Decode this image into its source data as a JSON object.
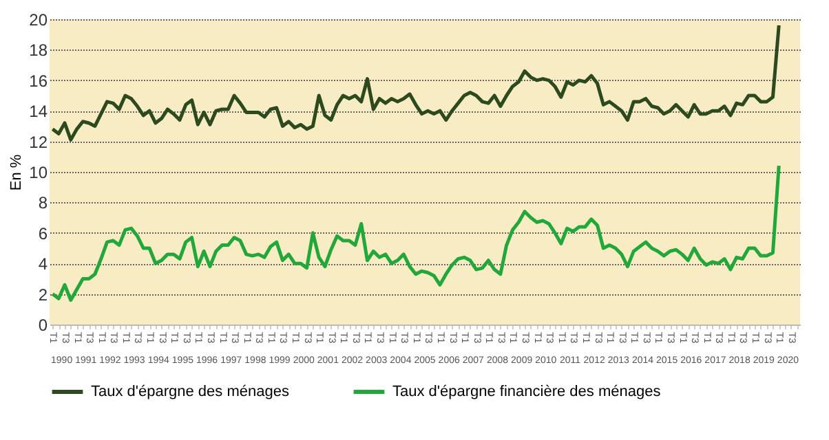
{
  "chart_data": {
    "type": "line",
    "categories": [
      "T1",
      null,
      "T3",
      null,
      "T1",
      null,
      "T3",
      null,
      "T1",
      null,
      "T3",
      null,
      "T1",
      null,
      "T3",
      null,
      "T1",
      null,
      "T3",
      null,
      "T1",
      null,
      "T3",
      null,
      "T1",
      null,
      "T3",
      null,
      "T1",
      null,
      "T3",
      null,
      "T1",
      null,
      "T3",
      null,
      "T1",
      null,
      "T3",
      null,
      "T1",
      null,
      "T3",
      null,
      "T1",
      null,
      "T3",
      null,
      "T1",
      null,
      "T3",
      null,
      "T1",
      null,
      "T3",
      null,
      "T1",
      null,
      "T3",
      null,
      "T1",
      null,
      "T3",
      null,
      "T1",
      null,
      "T3",
      null,
      "T1",
      null,
      "T3",
      null,
      "T1",
      null,
      "T3",
      null,
      "T1",
      null,
      "T3",
      null,
      "T1",
      null,
      "T3",
      null,
      "T1",
      null,
      "T3",
      null,
      "T1",
      null,
      "T3",
      null,
      "T1",
      null,
      "T3",
      null,
      "T1",
      null,
      "T3",
      null,
      "T1",
      null,
      "T3",
      null,
      "T1",
      null,
      "T3",
      null,
      "T1",
      null,
      "T3",
      null,
      "T1",
      null,
      "T3",
      null,
      "T1",
      null,
      "T3",
      null,
      "T1",
      null,
      "T3",
      null
    ],
    "annotations": [
      "1990",
      "1991",
      "1992",
      "1993",
      "1994",
      "1995",
      "1996",
      "1997",
      "1998",
      "1999",
      "2000",
      "2001",
      "2002",
      "2003",
      "2004",
      "2005",
      "2006",
      "2007",
      "2008",
      "2009",
      "2010",
      "2011",
      "2012",
      "2013",
      "2014",
      "2015",
      "2016",
      "2017",
      "2018",
      "2019",
      "2020"
    ],
    "ylabel": "En %",
    "ylim": [
      0,
      20
    ],
    "yticks": [
      0,
      2,
      4,
      6,
      8,
      10,
      12,
      14,
      16,
      18,
      20
    ],
    "grid": "y",
    "legend": "bottom",
    "marker": "none",
    "line_style": "solid",
    "series": [
      {
        "name": "Taux d'épargne des ménages",
        "color": "#2d4a1e",
        "values": [
          12.8,
          12.5,
          13.2,
          12.1,
          12.8,
          13.3,
          13.2,
          13.0,
          13.8,
          14.6,
          14.5,
          14.1,
          15.0,
          14.8,
          14.3,
          13.7,
          14.0,
          13.2,
          13.5,
          14.1,
          13.8,
          13.4,
          14.4,
          14.7,
          13.1,
          13.9,
          13.1,
          14.0,
          14.1,
          14.1,
          15.0,
          14.5,
          13.9,
          13.9,
          13.9,
          13.6,
          14.1,
          14.2,
          13.0,
          13.3,
          12.9,
          13.1,
          12.8,
          13.0,
          15.0,
          13.7,
          13.4,
          14.4,
          15.0,
          14.8,
          15.0,
          14.6,
          16.1,
          14.1,
          14.8,
          14.5,
          14.8,
          14.6,
          14.8,
          15.1,
          14.4,
          13.8,
          14.0,
          13.8,
          14.0,
          13.4,
          14.0,
          14.5,
          15.0,
          15.2,
          15.0,
          14.6,
          14.5,
          15.0,
          14.3,
          15.0,
          15.6,
          15.9,
          16.6,
          16.2,
          16.0,
          16.1,
          16.0,
          15.6,
          14.9,
          15.9,
          15.7,
          16.0,
          15.9,
          16.3,
          15.8,
          14.4,
          14.6,
          14.3,
          14.0,
          13.4,
          14.6,
          14.6,
          14.8,
          14.3,
          14.2,
          13.8,
          14.0,
          14.4,
          14.0,
          13.6,
          14.4,
          13.8,
          13.8,
          14.0,
          14.0,
          14.3,
          13.7,
          14.5,
          14.4,
          15.0,
          15.0,
          14.6,
          14.6,
          14.9,
          19.6,
          null,
          null,
          null
        ]
      },
      {
        "name": "Taux d'épargne financière des ménages",
        "color": "#22a83a",
        "values": [
          2.0,
          1.7,
          2.6,
          1.6,
          2.3,
          3.0,
          3.0,
          3.3,
          4.3,
          5.4,
          5.5,
          5.2,
          6.2,
          6.3,
          5.8,
          5.0,
          5.0,
          4.0,
          4.2,
          4.6,
          4.6,
          4.3,
          5.4,
          5.7,
          3.8,
          4.8,
          3.8,
          4.8,
          5.2,
          5.2,
          5.7,
          5.5,
          4.6,
          4.5,
          4.6,
          4.4,
          5.1,
          5.4,
          4.2,
          4.6,
          4.0,
          4.0,
          3.7,
          6.0,
          4.4,
          3.8,
          4.9,
          5.8,
          5.5,
          5.5,
          5.2,
          6.6,
          4.2,
          4.8,
          4.4,
          4.6,
          4.0,
          4.2,
          4.6,
          3.8,
          3.3,
          3.5,
          3.4,
          3.2,
          2.6,
          3.3,
          3.9,
          4.3,
          4.4,
          4.2,
          3.6,
          3.7,
          4.2,
          3.6,
          3.3,
          5.2,
          6.2,
          6.7,
          7.4,
          7.0,
          6.7,
          6.8,
          6.6,
          6.0,
          5.3,
          6.3,
          6.1,
          6.4,
          6.4,
          6.9,
          6.5,
          5.0,
          5.2,
          5.0,
          4.6,
          3.8,
          4.8,
          5.1,
          5.4,
          5.0,
          4.8,
          4.5,
          4.8,
          4.9,
          4.6,
          4.2,
          5.0,
          4.3,
          3.9,
          4.1,
          4.0,
          4.3,
          3.6,
          4.4,
          4.3,
          5.0,
          5.0,
          4.5,
          4.5,
          4.7,
          10.4,
          null,
          null,
          null
        ]
      }
    ]
  }
}
